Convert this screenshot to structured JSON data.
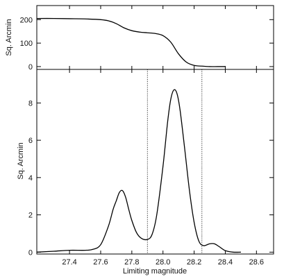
{
  "chart_data": [
    {
      "type": "line",
      "panel": "top",
      "ylabel": "Sq. Arcmin",
      "xlabel": "",
      "xlim": [
        27.19,
        28.71
      ],
      "ylim": [
        -12,
        260
      ],
      "yticks": [
        0,
        100,
        200
      ],
      "xticks": [
        27.4,
        27.6,
        27.8,
        28.0,
        28.2,
        28.4,
        28.6
      ],
      "xtick_labels_shown": false,
      "grid": false,
      "series": [
        {
          "x": [
            27.19,
            27.3,
            27.4,
            27.5,
            27.6,
            27.65,
            27.7,
            27.75,
            27.8,
            27.85,
            27.9,
            27.95,
            28.0,
            28.05,
            28.1,
            28.15,
            28.2,
            28.25,
            28.3,
            28.35,
            28.4
          ],
          "y": [
            205,
            205,
            204,
            203,
            200,
            195,
            183,
            165,
            153,
            147,
            144,
            141,
            132,
            104,
            54,
            19,
            5,
            2,
            0,
            0,
            0
          ]
        }
      ]
    },
    {
      "type": "line",
      "panel": "bottom",
      "ylabel": "Sq. Arcmin",
      "xlabel": "Limiting magnitude",
      "xlim": [
        27.19,
        28.71
      ],
      "ylim": [
        -0.1,
        9.8
      ],
      "yticks": [
        0,
        2,
        4,
        6,
        8
      ],
      "xticks": [
        27.4,
        27.6,
        27.8,
        28.0,
        28.2,
        28.4,
        28.6
      ],
      "vlines": [
        27.9,
        28.25
      ],
      "grid": false,
      "series": [
        {
          "x": [
            27.19,
            27.3,
            27.4,
            27.5,
            27.55,
            27.6,
            27.65,
            27.68,
            27.7,
            27.72,
            27.74,
            27.76,
            27.78,
            27.8,
            27.83,
            27.86,
            27.9,
            27.93,
            27.96,
            28.0,
            28.03,
            28.05,
            28.07,
            28.09,
            28.11,
            28.14,
            28.17,
            28.2,
            28.23,
            28.26,
            28.3,
            28.33,
            28.36,
            28.4,
            28.45,
            28.5
          ],
          "y": [
            0.0,
            0.05,
            0.1,
            0.1,
            0.15,
            0.4,
            1.4,
            2.3,
            2.75,
            3.2,
            3.3,
            2.95,
            2.3,
            1.7,
            1.05,
            0.75,
            0.68,
            0.95,
            2.0,
            4.6,
            7.0,
            8.2,
            8.7,
            8.5,
            7.6,
            5.5,
            3.3,
            1.6,
            0.6,
            0.35,
            0.45,
            0.45,
            0.3,
            0.08,
            0.0,
            0.0
          ]
        }
      ]
    }
  ]
}
